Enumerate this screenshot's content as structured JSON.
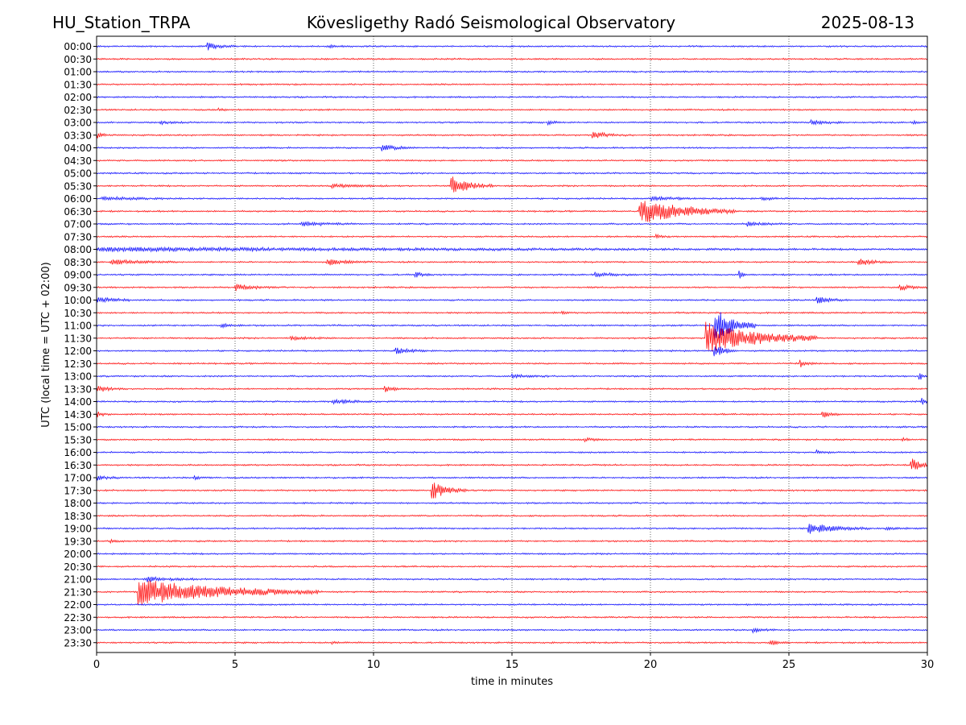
{
  "header": {
    "station": "HU_Station_TRPA",
    "observatory": "Kövesligethy Radó Seismological Observatory",
    "date": "2025-08-13"
  },
  "chart_data": {
    "type": "line",
    "title": "Kövesligethy Radó Seismological Observatory",
    "xlabel": "time in minutes",
    "ylabel": "UTC (local time = UTC + 02:00)",
    "xlim": [
      0,
      30
    ],
    "xticks": [
      0,
      5,
      10,
      15,
      20,
      25,
      30
    ],
    "vertical_gridlines": [
      5,
      10,
      15,
      20,
      25
    ],
    "grid": "dotted vertical",
    "trace_colors": [
      "#0000ff",
      "#ff0000"
    ],
    "traces": [
      {
        "label": "00:00",
        "events": [
          {
            "t": 4.0,
            "amp": 0.45,
            "dur": 1.0
          },
          {
            "t": 8.3,
            "amp": 0.18,
            "dur": 0.8
          }
        ]
      },
      {
        "label": "00:30",
        "events": []
      },
      {
        "label": "01:00",
        "events": []
      },
      {
        "label": "01:30",
        "events": []
      },
      {
        "label": "02:00",
        "events": []
      },
      {
        "label": "02:30",
        "events": [
          {
            "t": 4.4,
            "amp": 0.15,
            "dur": 0.4
          }
        ]
      },
      {
        "label": "03:00",
        "events": [
          {
            "t": 2.3,
            "amp": 0.2,
            "dur": 1.0
          },
          {
            "t": 16.3,
            "amp": 0.35,
            "dur": 0.4
          },
          {
            "t": 25.8,
            "amp": 0.3,
            "dur": 1.2
          },
          {
            "t": 29.5,
            "amp": 0.2,
            "dur": 0.5
          }
        ]
      },
      {
        "label": "03:30",
        "events": [
          {
            "t": 0.0,
            "amp": 0.35,
            "dur": 0.6
          },
          {
            "t": 17.9,
            "amp": 0.4,
            "dur": 1.3
          }
        ]
      },
      {
        "label": "04:00",
        "events": [
          {
            "t": 10.3,
            "amp": 0.35,
            "dur": 1.4
          }
        ]
      },
      {
        "label": "04:30",
        "events": []
      },
      {
        "label": "05:00",
        "events": []
      },
      {
        "label": "05:30",
        "events": [
          {
            "t": 12.8,
            "amp": 1.2,
            "dur": 1.5
          },
          {
            "t": 8.5,
            "amp": 0.22,
            "dur": 2.5
          }
        ]
      },
      {
        "label": "06:00",
        "events": [
          {
            "t": 0.2,
            "amp": 0.2,
            "dur": 3.0
          },
          {
            "t": 20.0,
            "amp": 0.25,
            "dur": 2.0
          },
          {
            "t": 24.0,
            "amp": 0.22,
            "dur": 1.0
          }
        ]
      },
      {
        "label": "06:30",
        "events": [
          {
            "t": 19.6,
            "amp": 1.6,
            "dur": 3.5
          }
        ]
      },
      {
        "label": "07:00",
        "events": [
          {
            "t": 7.4,
            "amp": 0.25,
            "dur": 2.0
          },
          {
            "t": 23.5,
            "amp": 0.25,
            "dur": 1.5
          }
        ]
      },
      {
        "label": "07:30",
        "events": [
          {
            "t": 20.2,
            "amp": 0.25,
            "dur": 0.5
          }
        ]
      },
      {
        "label": "08:00",
        "events": [
          {
            "t": 0.0,
            "amp": 0.2,
            "dur": 30
          }
        ]
      },
      {
        "label": "08:30",
        "events": [
          {
            "t": 8.3,
            "amp": 0.4,
            "dur": 1.5
          },
          {
            "t": 27.5,
            "amp": 0.45,
            "dur": 1.2
          },
          {
            "t": 0.5,
            "amp": 0.3,
            "dur": 2.5
          }
        ]
      },
      {
        "label": "09:00",
        "events": [
          {
            "t": 11.5,
            "amp": 0.35,
            "dur": 0.6
          },
          {
            "t": 23.2,
            "amp": 0.5,
            "dur": 0.3
          },
          {
            "t": 18.0,
            "amp": 0.3,
            "dur": 1.5
          }
        ]
      },
      {
        "label": "09:30",
        "events": [
          {
            "t": 5.0,
            "amp": 0.4,
            "dur": 1.5
          },
          {
            "t": 29.0,
            "amp": 0.35,
            "dur": 1.0
          }
        ]
      },
      {
        "label": "10:00",
        "events": [
          {
            "t": 0.0,
            "amp": 0.5,
            "dur": 1.2
          },
          {
            "t": 26.0,
            "amp": 0.4,
            "dur": 1.2
          }
        ]
      },
      {
        "label": "10:30",
        "events": [
          {
            "t": 16.8,
            "amp": 0.15,
            "dur": 0.4
          }
        ]
      },
      {
        "label": "11:00",
        "events": [
          {
            "t": 22.3,
            "amp": 2.4,
            "dur": 1.5
          },
          {
            "t": 4.5,
            "amp": 0.25,
            "dur": 0.8
          }
        ]
      },
      {
        "label": "11:30",
        "events": [
          {
            "t": 22.0,
            "amp": 2.0,
            "dur": 4.0
          },
          {
            "t": 7.0,
            "amp": 0.2,
            "dur": 1.5
          }
        ]
      },
      {
        "label": "12:00",
        "events": [
          {
            "t": 10.8,
            "amp": 0.35,
            "dur": 1.2
          },
          {
            "t": 22.3,
            "amp": 1.0,
            "dur": 0.8
          }
        ]
      },
      {
        "label": "12:30",
        "events": [
          {
            "t": 25.4,
            "amp": 0.4,
            "dur": 0.6
          }
        ]
      },
      {
        "label": "13:00",
        "events": [
          {
            "t": 29.7,
            "amp": 0.6,
            "dur": 0.3
          },
          {
            "t": 15.0,
            "amp": 0.18,
            "dur": 1.5
          }
        ]
      },
      {
        "label": "13:30",
        "events": [
          {
            "t": 0.0,
            "amp": 0.45,
            "dur": 1.0
          },
          {
            "t": 10.4,
            "amp": 0.4,
            "dur": 0.6
          }
        ]
      },
      {
        "label": "14:00",
        "events": [
          {
            "t": 29.8,
            "amp": 0.6,
            "dur": 0.2
          },
          {
            "t": 8.5,
            "amp": 0.25,
            "dur": 2.0
          }
        ]
      },
      {
        "label": "14:30",
        "events": [
          {
            "t": 0.0,
            "amp": 0.5,
            "dur": 0.5
          },
          {
            "t": 26.2,
            "amp": 0.5,
            "dur": 0.6
          }
        ]
      },
      {
        "label": "15:00",
        "events": []
      },
      {
        "label": "15:30",
        "events": [
          {
            "t": 17.6,
            "amp": 0.2,
            "dur": 1.0
          },
          {
            "t": 29.1,
            "amp": 0.2,
            "dur": 0.5
          }
        ]
      },
      {
        "label": "16:00",
        "events": [
          {
            "t": 26.0,
            "amp": 0.25,
            "dur": 0.6
          }
        ]
      },
      {
        "label": "16:30",
        "events": [
          {
            "t": 29.4,
            "amp": 1.3,
            "dur": 0.6
          }
        ]
      },
      {
        "label": "17:00",
        "events": [
          {
            "t": 0.0,
            "amp": 0.25,
            "dur": 1.0
          },
          {
            "t": 3.5,
            "amp": 0.2,
            "dur": 0.8
          }
        ]
      },
      {
        "label": "17:30",
        "events": [
          {
            "t": 12.1,
            "amp": 1.2,
            "dur": 1.3
          }
        ]
      },
      {
        "label": "18:00",
        "events": []
      },
      {
        "label": "18:30",
        "events": []
      },
      {
        "label": "19:00",
        "events": [
          {
            "t": 25.7,
            "amp": 0.7,
            "dur": 2.2
          },
          {
            "t": 28.5,
            "amp": 0.2,
            "dur": 0.8
          }
        ]
      },
      {
        "label": "19:30",
        "events": [
          {
            "t": 0.5,
            "amp": 0.2,
            "dur": 0.6
          }
        ]
      },
      {
        "label": "20:00",
        "events": []
      },
      {
        "label": "20:30",
        "events": []
      },
      {
        "label": "21:00",
        "events": [
          {
            "t": 1.8,
            "amp": 0.3,
            "dur": 2.0
          }
        ]
      },
      {
        "label": "21:30",
        "events": [
          {
            "t": 1.5,
            "amp": 1.6,
            "dur": 6.5
          }
        ]
      },
      {
        "label": "22:00",
        "events": []
      },
      {
        "label": "22:30",
        "events": []
      },
      {
        "label": "23:00",
        "events": [
          {
            "t": 23.7,
            "amp": 0.3,
            "dur": 0.8
          }
        ]
      },
      {
        "label": "23:30",
        "events": [
          {
            "t": 24.3,
            "amp": 0.3,
            "dur": 0.8
          },
          {
            "t": 8.5,
            "amp": 0.15,
            "dur": 0.6
          }
        ]
      }
    ]
  }
}
